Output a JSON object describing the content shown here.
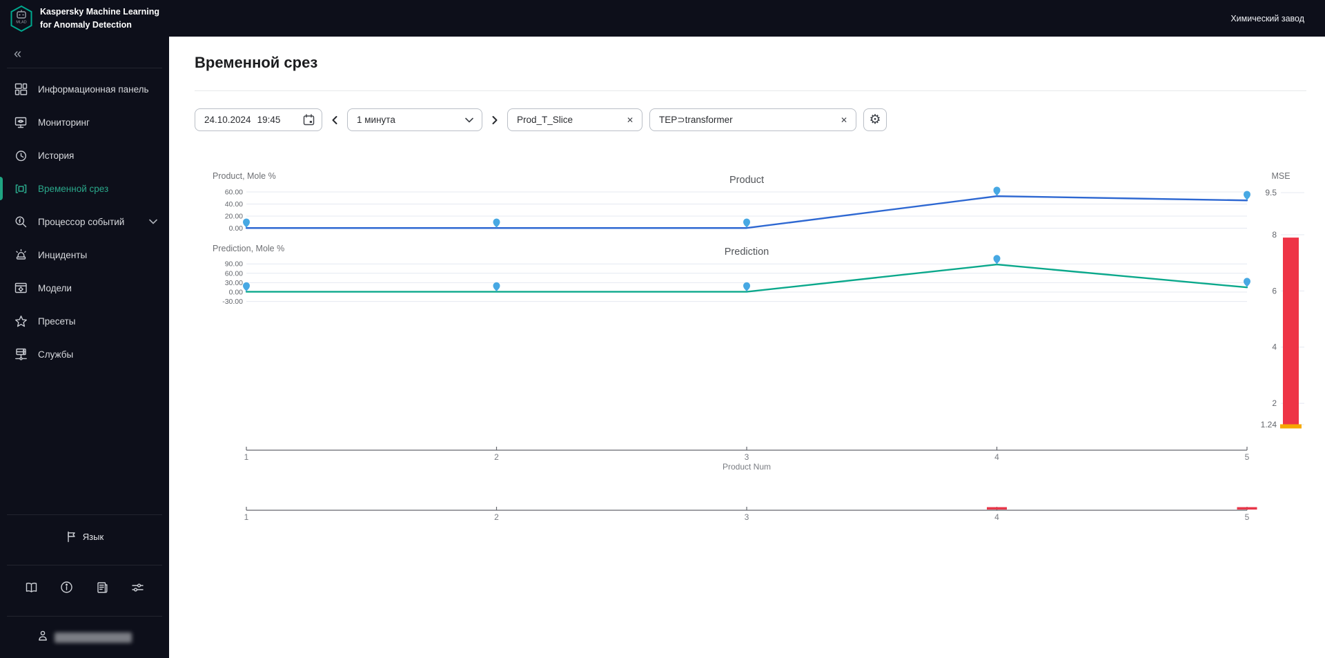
{
  "app": {
    "name_line1": "Kaspersky Machine Learning",
    "name_line2": "for Anomaly Detection",
    "logo_text": "MLAD",
    "tenant": "Химический завод"
  },
  "icons": {
    "collapse": "«",
    "remove": "✕",
    "gear": "⚙"
  },
  "sidebar": {
    "items": [
      {
        "label": "Информационная панель"
      },
      {
        "label": "Мониторинг"
      },
      {
        "label": "История"
      },
      {
        "label": "Временной срез",
        "active": true
      },
      {
        "label": "Процессор событий",
        "expandable": true
      },
      {
        "label": "Инциденты"
      },
      {
        "label": "Модели"
      },
      {
        "label": "Пресеты"
      },
      {
        "label": "Службы"
      }
    ],
    "language_label": "Язык"
  },
  "page": {
    "title": "Временной срез"
  },
  "toolbar": {
    "date_value": "24.10.2024",
    "time_value": "19:45",
    "interval_value": "1 минута",
    "tags": [
      "Prod_T_Slice",
      "TEP⊃transformer"
    ]
  },
  "chart_data": [
    {
      "type": "line",
      "title": "Product",
      "ylabel": "Product, Mole %",
      "x": [
        1,
        2,
        3,
        4,
        5
      ],
      "values": [
        0.3,
        0.3,
        0.3,
        53,
        46
      ],
      "ytick_labels": [
        "60.00",
        "40.00",
        "20.00",
        "0.00"
      ],
      "ylim": [
        -8,
        66
      ],
      "grid": true,
      "line_color": "#2e68d2",
      "marker_color": "#47a8e3"
    },
    {
      "type": "line",
      "title": "Prediction",
      "ylabel": "Prediction, Mole %",
      "x": [
        1,
        2,
        3,
        4,
        5
      ],
      "values": [
        1,
        1,
        1,
        88,
        15
      ],
      "ytick_labels": [
        "90.00",
        "60.00",
        "30.00",
        "0.00",
        "-30.00"
      ],
      "ylim": [
        -45,
        100
      ],
      "grid": true,
      "line_color": "#0aa88b",
      "marker_color": "#47a8e3"
    },
    {
      "type": "bar",
      "title": "MSE",
      "value_top": 7.9,
      "value_bottom": 1.24,
      "ytick_labels": [
        "9.5",
        "8",
        "6",
        "4",
        "2",
        "1.24"
      ],
      "bar_color": "#ee3446",
      "base_color": "#f6a800"
    },
    {
      "type": "axis",
      "ticks": [
        "1",
        "2",
        "3",
        "4",
        "5"
      ],
      "xlabel": "Product Num"
    },
    {
      "type": "axis",
      "ticks": [
        "1",
        "2",
        "3",
        "4",
        "5"
      ],
      "anomaly_marks": [
        4,
        5
      ],
      "mark_color": "#e8374a"
    }
  ]
}
